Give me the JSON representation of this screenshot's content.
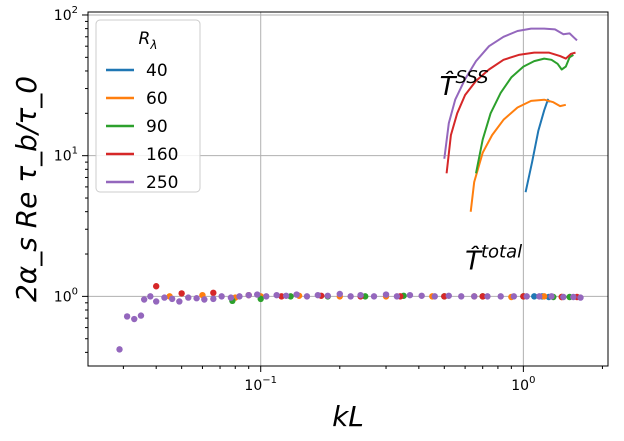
{
  "chart_data": {
    "type": "line+scatter",
    "xscale": "log",
    "yscale": "log",
    "xlim": [
      0.022,
      2.1
    ],
    "ylim": [
      0.32,
      105
    ],
    "xlabel": "kL",
    "ylabel": "2α_s Re τ_b/τ_0",
    "grid": true,
    "legend_title": "R_λ",
    "legend_placement": "top-left",
    "x_ticks": [
      {
        "value": 0.1,
        "base": "10",
        "exp": "−1"
      },
      {
        "value": 1,
        "base": "10",
        "exp": "0"
      }
    ],
    "y_ticks": [
      {
        "value": 1,
        "base": "10",
        "exp": "0"
      },
      {
        "value": 10,
        "base": "10",
        "exp": "1"
      },
      {
        "value": 100,
        "base": "10",
        "exp": "2"
      }
    ],
    "annotations": [
      {
        "base": "T̂",
        "sup": "SSS",
        "x": 0.48,
        "y": 27
      },
      {
        "base": "T̂",
        "sup": "total",
        "x": 0.6,
        "y": 1.55
      }
    ],
    "series": [
      {
        "name": "40",
        "color": "#1f77b4",
        "sss_curve": [
          [
            1.02,
            5.5
          ],
          [
            1.08,
            9
          ],
          [
            1.14,
            15
          ],
          [
            1.2,
            21
          ],
          [
            1.24,
            25
          ],
          [
            1.26,
            24
          ]
        ],
        "total_points": [
          [
            1.1,
            1.0
          ],
          [
            1.18,
            1.0
          ],
          [
            1.25,
            0.99
          ]
        ]
      },
      {
        "name": "60",
        "color": "#ff7f0e",
        "sss_curve": [
          [
            0.63,
            4.0
          ],
          [
            0.65,
            6.5
          ],
          [
            0.7,
            10.5
          ],
          [
            0.76,
            14
          ],
          [
            0.84,
            18
          ],
          [
            0.95,
            22
          ],
          [
            1.07,
            24.5
          ],
          [
            1.2,
            25
          ],
          [
            1.3,
            24
          ],
          [
            1.38,
            22.5
          ],
          [
            1.45,
            23
          ]
        ],
        "total_points": [
          [
            0.045,
            1.0
          ],
          [
            0.06,
            1.02
          ],
          [
            0.08,
            0.98
          ],
          [
            0.1,
            1.0
          ],
          [
            0.14,
            1.01
          ],
          [
            0.2,
            1.0
          ],
          [
            0.3,
            1.0
          ],
          [
            0.45,
            1.0
          ],
          [
            0.65,
            1.0
          ],
          [
            0.9,
            0.99
          ],
          [
            1.2,
            1.0
          ],
          [
            1.4,
            0.99
          ]
        ]
      },
      {
        "name": "90",
        "color": "#2ca02c",
        "sss_curve": [
          [
            0.66,
            7.5
          ],
          [
            0.7,
            13
          ],
          [
            0.75,
            20
          ],
          [
            0.82,
            28
          ],
          [
            0.9,
            36
          ],
          [
            1.0,
            43
          ],
          [
            1.1,
            47
          ],
          [
            1.2,
            49
          ],
          [
            1.28,
            48
          ],
          [
            1.35,
            45
          ],
          [
            1.4,
            41
          ],
          [
            1.45,
            43
          ],
          [
            1.5,
            50
          ],
          [
            1.55,
            52
          ]
        ],
        "total_points": [
          [
            0.078,
            0.93
          ],
          [
            0.1,
            0.96
          ],
          [
            0.13,
            1.0
          ],
          [
            0.18,
            1.0
          ],
          [
            0.25,
            1.0
          ],
          [
            0.35,
            1.01
          ],
          [
            0.5,
            1.0
          ],
          [
            0.7,
            1.0
          ],
          [
            1.0,
            1.0
          ],
          [
            1.3,
            0.99
          ],
          [
            1.5,
            0.99
          ]
        ]
      },
      {
        "name": "160",
        "color": "#d62728",
        "sss_curve": [
          [
            0.51,
            7.5
          ],
          [
            0.53,
            14
          ],
          [
            0.56,
            20
          ],
          [
            0.6,
            27
          ],
          [
            0.66,
            34
          ],
          [
            0.74,
            41
          ],
          [
            0.84,
            48
          ],
          [
            0.96,
            52
          ],
          [
            1.1,
            54
          ],
          [
            1.25,
            54
          ],
          [
            1.38,
            51
          ],
          [
            1.45,
            49
          ],
          [
            1.52,
            53
          ],
          [
            1.58,
            54
          ]
        ],
        "total_points": [
          [
            0.04,
            1.18
          ],
          [
            0.05,
            1.05
          ],
          [
            0.066,
            1.06
          ],
          [
            0.09,
            1.02
          ],
          [
            0.12,
            1.0
          ],
          [
            0.17,
            1.01
          ],
          [
            0.24,
            1.0
          ],
          [
            0.34,
            1.0
          ],
          [
            0.5,
            1.0
          ],
          [
            0.7,
            1.0
          ],
          [
            1.0,
            1.0
          ],
          [
            1.4,
            0.99
          ],
          [
            1.6,
            0.99
          ]
        ]
      },
      {
        "name": "250",
        "color": "#9467bd",
        "sss_curve": [
          [
            0.5,
            9.5
          ],
          [
            0.52,
            17
          ],
          [
            0.55,
            25
          ],
          [
            0.6,
            35
          ],
          [
            0.66,
            47
          ],
          [
            0.74,
            60
          ],
          [
            0.84,
            70
          ],
          [
            0.95,
            77
          ],
          [
            1.07,
            80
          ],
          [
            1.2,
            80
          ],
          [
            1.32,
            79
          ],
          [
            1.42,
            73
          ],
          [
            1.5,
            74
          ],
          [
            1.56,
            69
          ],
          [
            1.6,
            66
          ]
        ],
        "total_points": [
          [
            0.029,
            0.42
          ],
          [
            0.031,
            0.72
          ],
          [
            0.033,
            0.69
          ],
          [
            0.035,
            0.73
          ],
          [
            0.036,
            0.95
          ],
          [
            0.038,
            1.0
          ],
          [
            0.04,
            0.92
          ],
          [
            0.043,
            0.98
          ],
          [
            0.046,
            0.96
          ],
          [
            0.049,
            0.92
          ],
          [
            0.053,
            0.98
          ],
          [
            0.057,
            0.97
          ],
          [
            0.061,
            0.95
          ],
          [
            0.066,
            0.96
          ],
          [
            0.071,
            1.0
          ],
          [
            0.077,
            0.98
          ],
          [
            0.083,
            1.0
          ],
          [
            0.09,
            1.02
          ],
          [
            0.097,
            1.03
          ],
          [
            0.105,
            1.0
          ],
          [
            0.115,
            1.02
          ],
          [
            0.125,
            1.01
          ],
          [
            0.137,
            1.03
          ],
          [
            0.15,
            1.0
          ],
          [
            0.165,
            1.02
          ],
          [
            0.18,
            1.01
          ],
          [
            0.2,
            1.04
          ],
          [
            0.22,
            1.0
          ],
          [
            0.24,
            1.02
          ],
          [
            0.27,
            1.0
          ],
          [
            0.3,
            1.03
          ],
          [
            0.33,
            1.0
          ],
          [
            0.37,
            1.02
          ],
          [
            0.41,
            1.01
          ],
          [
            0.46,
            1.0
          ],
          [
            0.52,
            1.01
          ],
          [
            0.58,
            1.0
          ],
          [
            0.65,
            1.0
          ],
          [
            0.73,
            1.0
          ],
          [
            0.82,
            1.0
          ],
          [
            0.92,
            1.0
          ],
          [
            1.03,
            1.0
          ],
          [
            1.15,
            1.0
          ],
          [
            1.28,
            1.0
          ],
          [
            1.42,
            0.99
          ],
          [
            1.55,
            0.99
          ],
          [
            1.65,
            0.98
          ]
        ]
      }
    ]
  }
}
